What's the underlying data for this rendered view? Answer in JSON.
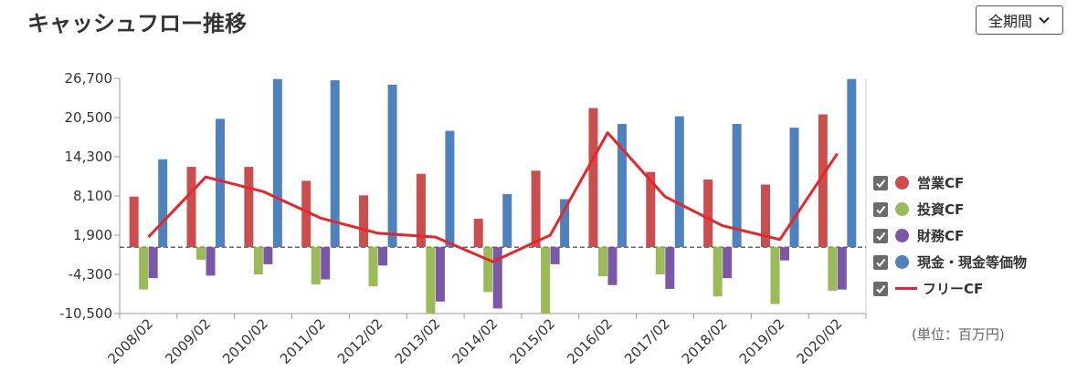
{
  "header": {
    "title": "キャッシュフロー推移"
  },
  "period_select": {
    "value": "全期間"
  },
  "unit_note": "(単位：百万円)",
  "colors": {
    "operating": "#c94f4f",
    "investing": "#9bbb59",
    "financing": "#7b57a8",
    "cash": "#4f81bd",
    "free": "#e8262a"
  },
  "legend": [
    {
      "label": "営業CF",
      "checked": true,
      "icon": "circle",
      "color": "#c94f4f"
    },
    {
      "label": "投資CF",
      "checked": true,
      "icon": "circle",
      "color": "#9bbb59"
    },
    {
      "label": "財務CF",
      "checked": true,
      "icon": "circle",
      "color": "#7b57a8"
    },
    {
      "label": "現金・現金等価物",
      "checked": true,
      "icon": "circle",
      "color": "#4f81bd"
    },
    {
      "label": "フリーCF",
      "checked": true,
      "icon": "line",
      "color": "#e8262a"
    }
  ],
  "chart_data": {
    "type": "bar",
    "categories": [
      "2008/02",
      "2009/02",
      "2010/02",
      "2011/02",
      "2012/02",
      "2013/02",
      "2014/02",
      "2015/02",
      "2016/02",
      "2017/02",
      "2018/02",
      "2019/02",
      "2020/02"
    ],
    "y_ticks": [
      26700,
      20500,
      14300,
      8100,
      1900,
      -4300,
      -10500
    ],
    "y_tick_labels": [
      "26,700",
      "20,500",
      "14,300",
      "8,100",
      "1,900",
      "-4,300",
      "-10,500"
    ],
    "ylim": [
      -10500,
      26700
    ],
    "series": [
      {
        "name": "営業CF",
        "kind": "bar",
        "color": "#c94f4f",
        "values": [
          8000,
          12700,
          12700,
          10500,
          8200,
          11600,
          4500,
          12100,
          22000,
          11900,
          10700,
          9900,
          21000
        ]
      },
      {
        "name": "投資CF",
        "kind": "bar",
        "color": "#9bbb59",
        "values": [
          -6700,
          -2000,
          -4300,
          -5900,
          -6200,
          -10500,
          -7100,
          -10500,
          -4600,
          -4300,
          -7800,
          -9000,
          -6900
        ]
      },
      {
        "name": "財務CF",
        "kind": "bar",
        "color": "#7b57a8",
        "values": [
          -4900,
          -4500,
          -2700,
          -5100,
          -2900,
          -8600,
          -9700,
          -2700,
          -6000,
          -6600,
          -4900,
          -2100,
          -6700
        ]
      },
      {
        "name": "現金・現金等価物",
        "kind": "bar",
        "color": "#4f81bd",
        "values": [
          13900,
          20300,
          26600,
          26400,
          25700,
          18400,
          8400,
          7600,
          19500,
          20700,
          19500,
          18900,
          26600
        ]
      },
      {
        "name": "フリーCF",
        "kind": "line",
        "color": "#e8262a",
        "values": [
          1600,
          11100,
          8800,
          4600,
          2200,
          1600,
          -2300,
          1900,
          18100,
          8000,
          3400,
          1200,
          14800
        ]
      }
    ],
    "grid": false,
    "legend_position": "right"
  }
}
